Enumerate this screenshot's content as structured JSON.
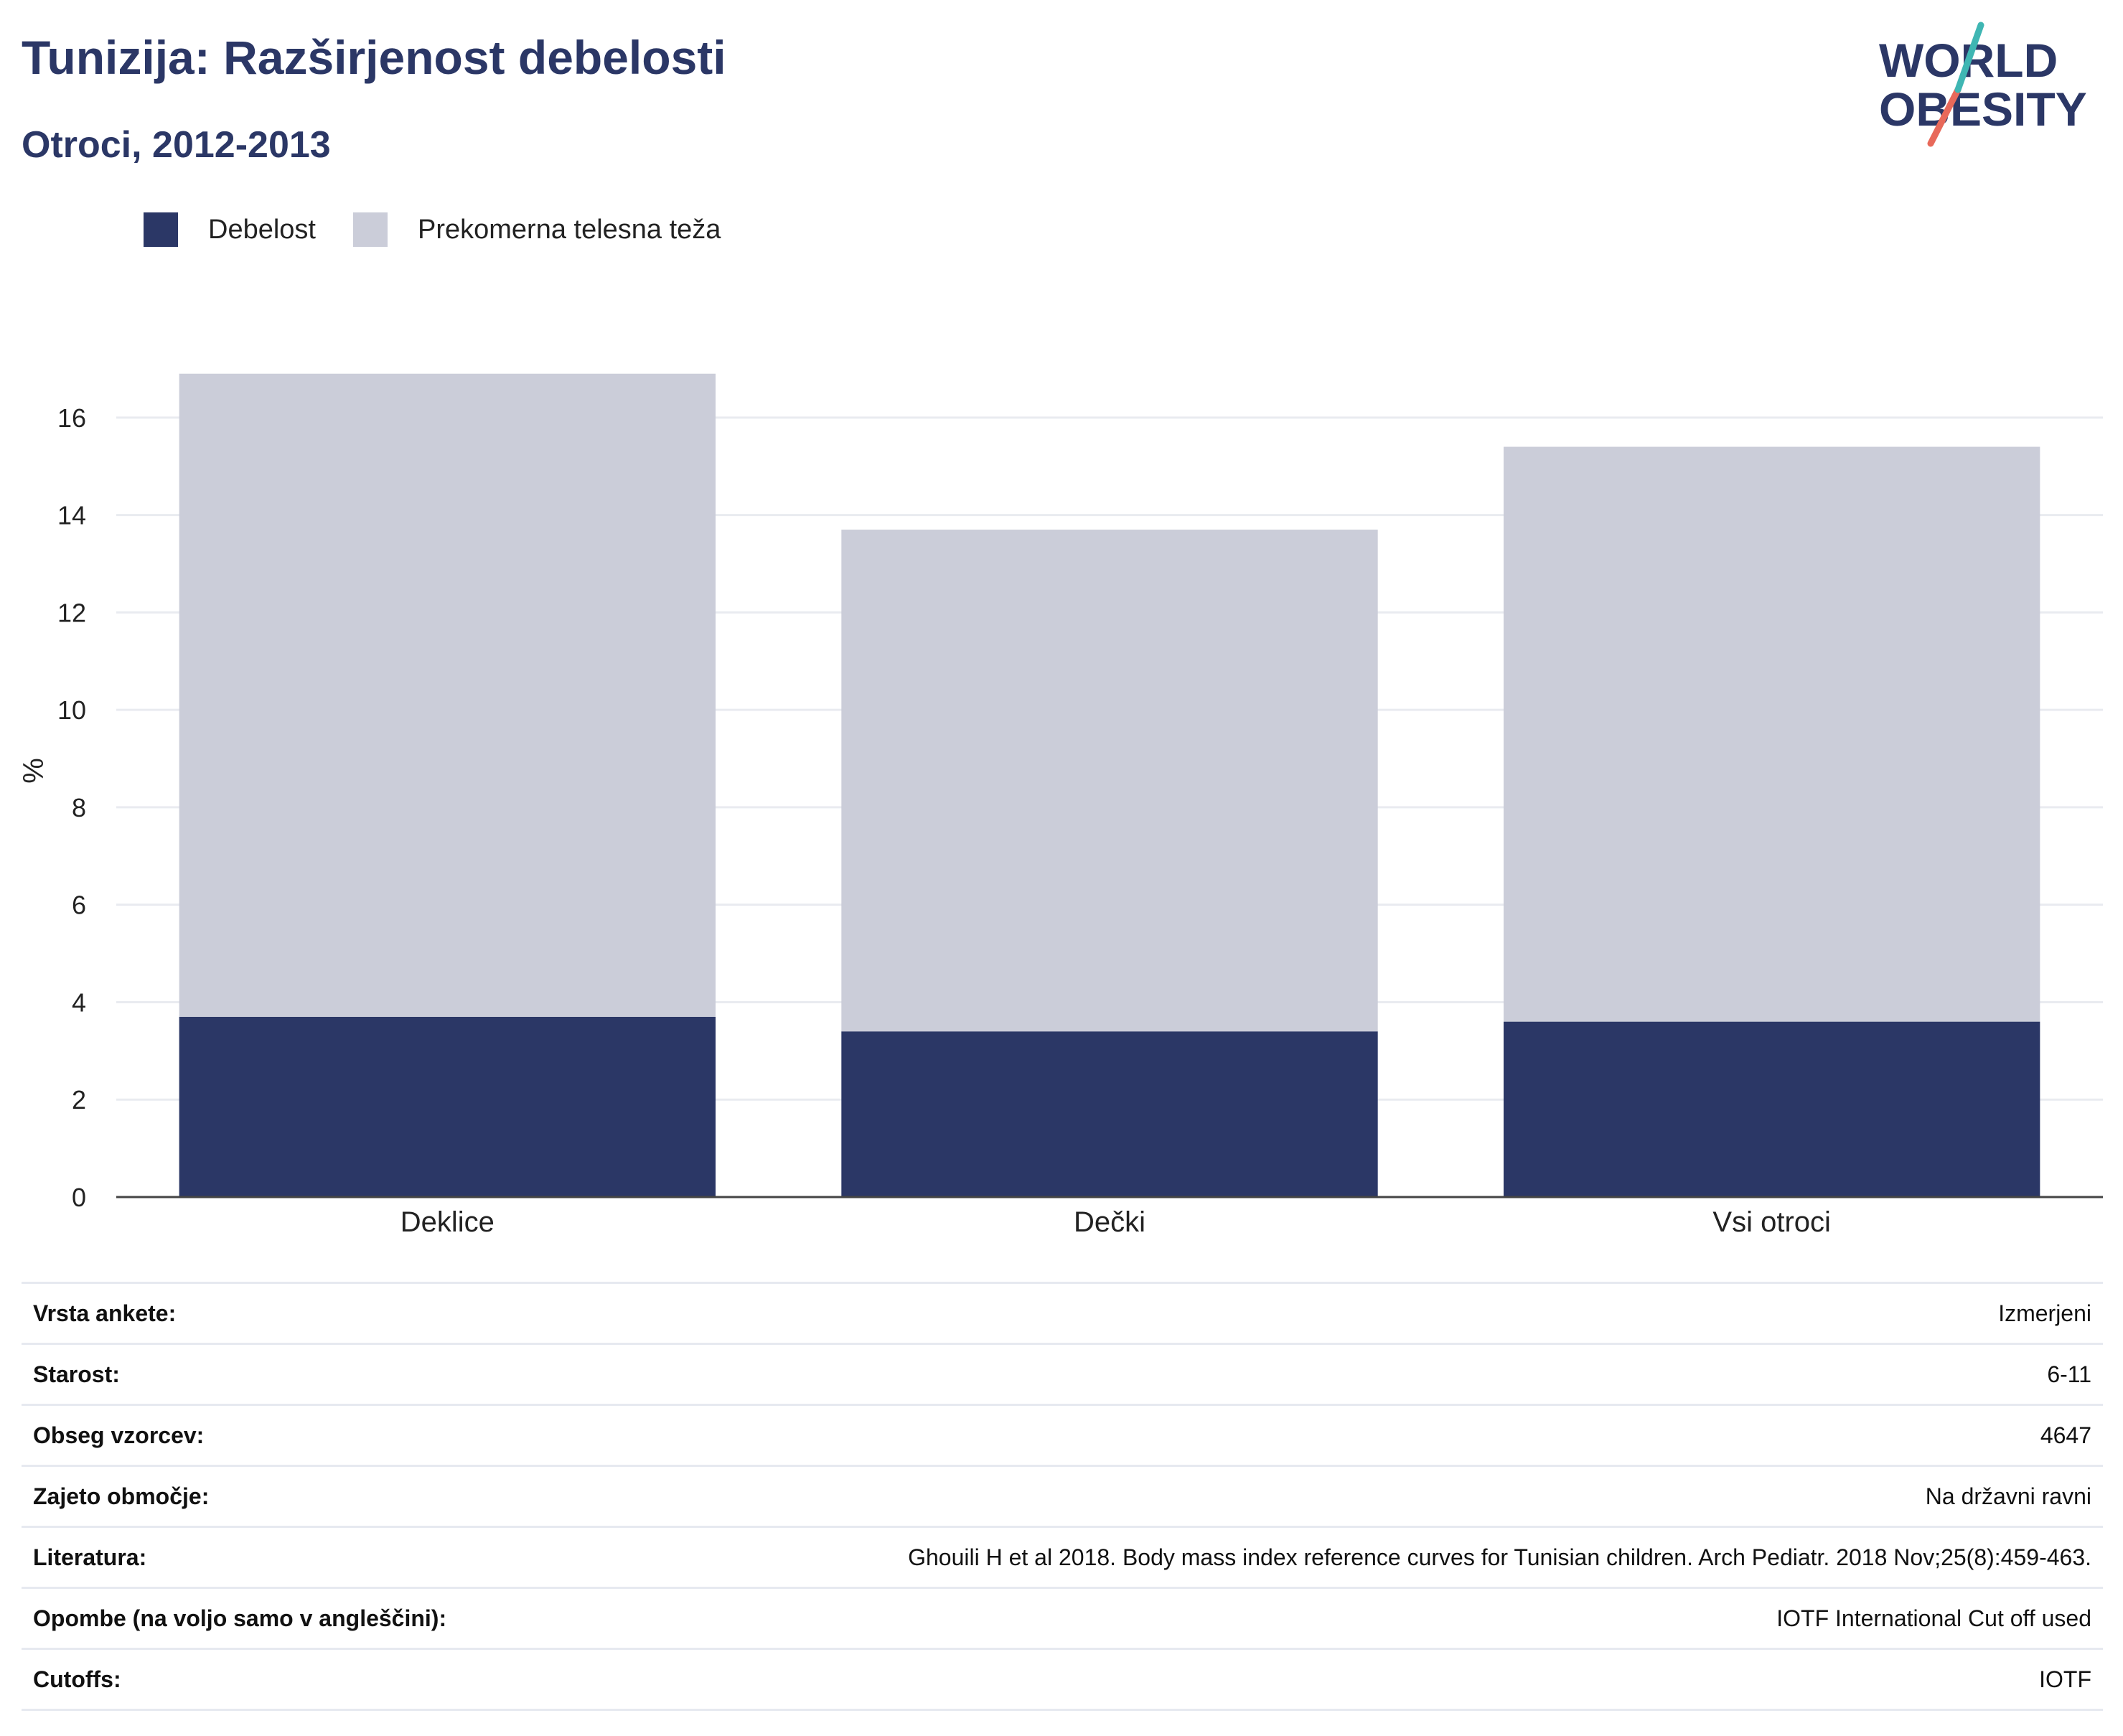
{
  "header": {
    "title": "Tunizija: Razširjenost debelosti",
    "subtitle": "Otroci, 2012-2013"
  },
  "logo": {
    "line1": "WORLD",
    "line2": "OBESITY"
  },
  "colors": {
    "obesity": "#2b3766",
    "overweight": "#cbcdd9",
    "title": "#2b3766",
    "grid": "#e9ebf0"
  },
  "legend": [
    {
      "label": "Debelost",
      "color": "#2b3766"
    },
    {
      "label": "Prekomerna telesna teža",
      "color": "#cbcdd9"
    }
  ],
  "chart_data": {
    "type": "bar",
    "stacked": true,
    "categories": [
      "Deklice",
      "Dečki",
      "Vsi otroci"
    ],
    "series": [
      {
        "name": "Debelost",
        "values": [
          3.7,
          3.4,
          3.6
        ]
      },
      {
        "name": "Prekomerna telesna teža",
        "values": [
          13.2,
          10.3,
          11.8
        ]
      }
    ],
    "ylabel": "%",
    "ylim": [
      0,
      17.5
    ],
    "yticks": [
      0,
      2,
      4,
      6,
      8,
      10,
      12,
      14,
      16
    ],
    "grid": true,
    "legend_position": "top-left"
  },
  "info_table": [
    {
      "label": "Vrsta ankete:",
      "value": "Izmerjeni"
    },
    {
      "label": "Starost:",
      "value": "6-11"
    },
    {
      "label": "Obseg vzorcev:",
      "value": "4647"
    },
    {
      "label": "Zajeto območje:",
      "value": "Na državni ravni"
    },
    {
      "label": "Literatura:",
      "value": "Ghouili H et al 2018. Body mass index reference curves for Tunisian children. Arch Pediatr. 2018 Nov;25(8):459-463."
    },
    {
      "label": "Opombe (na voljo samo v angleščini):",
      "value": "IOTF International Cut off used"
    },
    {
      "label": "Cutoffs:",
      "value": "IOTF"
    }
  ]
}
